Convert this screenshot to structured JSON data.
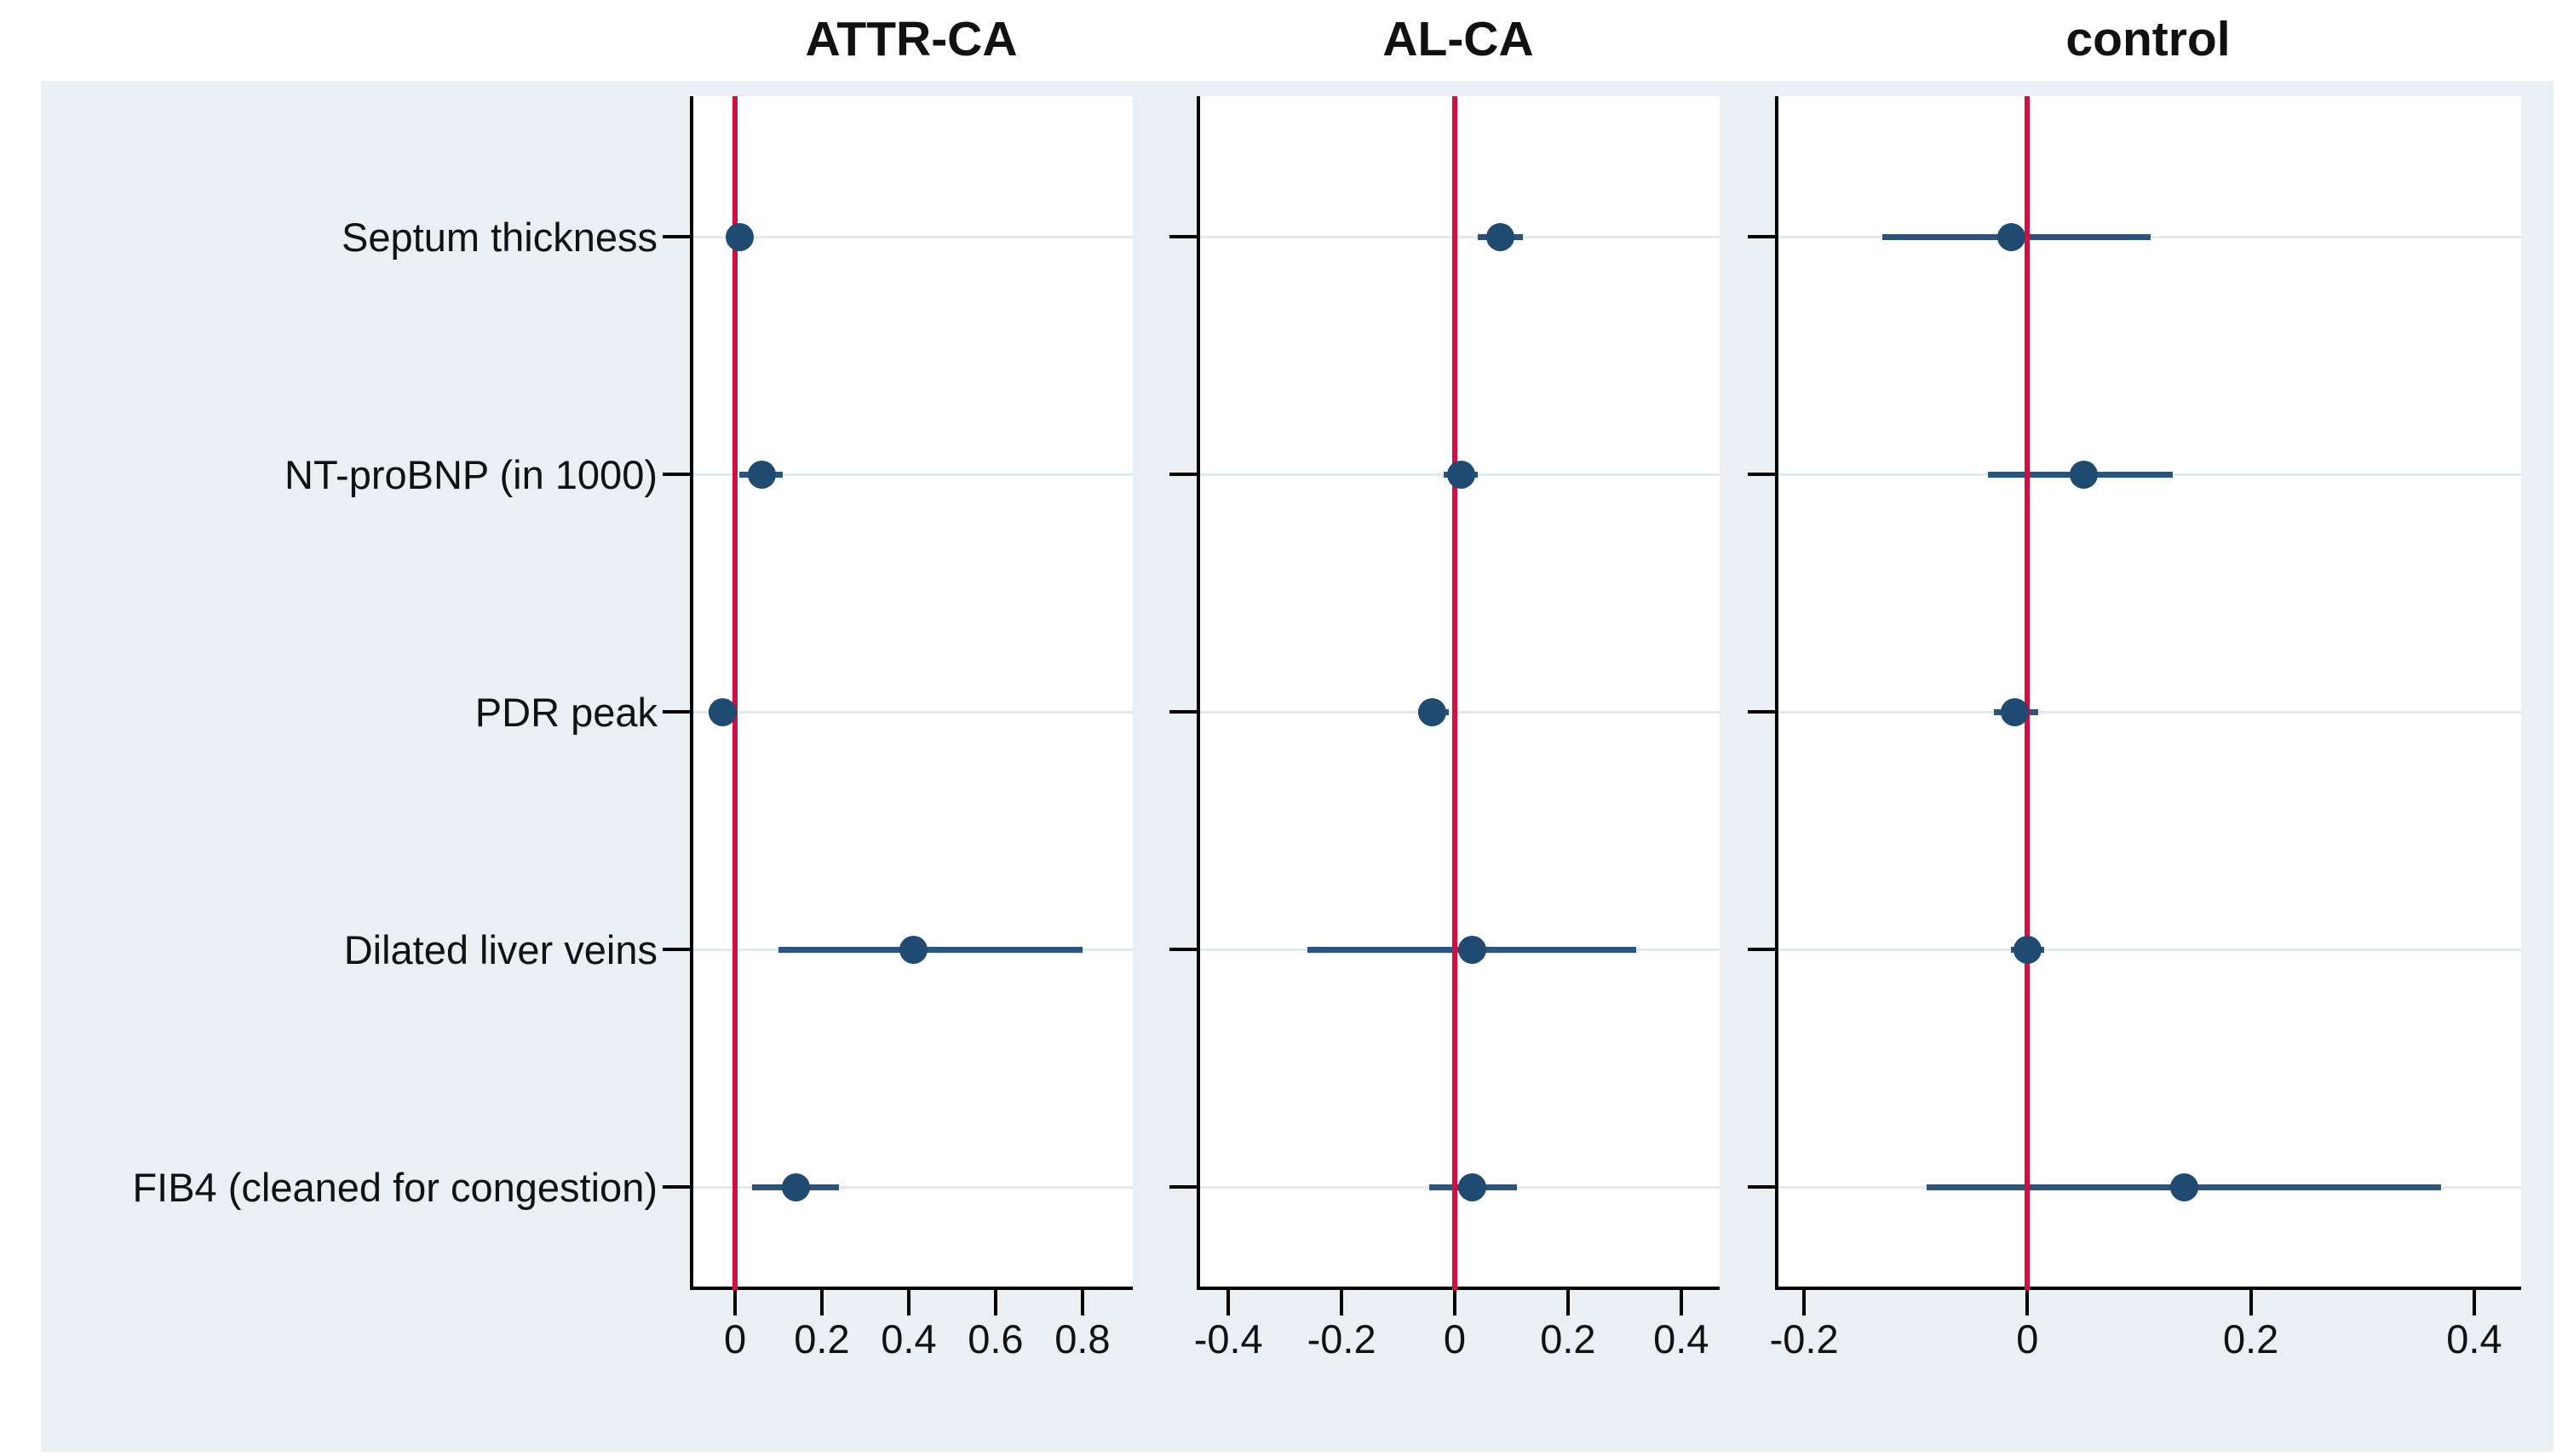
{
  "figure": {
    "background_color": "#e9eff2",
    "panel_color": "#ffffff",
    "zero_line_color": "#d00f42",
    "marker_color": "#1f4a72",
    "ci_color": "#2a5480",
    "gridline_color": "#e1ebee"
  },
  "rows": [
    "Septum thickness",
    "NT-proBNP (in 1000)",
    "PDR peak",
    "Dilated liver veins",
    "FIB4 (cleaned for congestion)"
  ],
  "chart_data": {
    "type": "scatter",
    "subtype": "forest-plot-three-panel",
    "row_labels": [
      "Septum thickness",
      "NT-proBNP (in 1000)",
      "PDR peak",
      "Dilated liver veins",
      "FIB4 (cleaned for congestion)"
    ],
    "zero_reference_line": 0,
    "grid": "horizontal-per-row",
    "legend": "none",
    "panels": [
      {
        "title": "ATTR-CA",
        "xlim": [
          -0.104,
          0.916
        ],
        "ticks": [
          {
            "v": 0,
            "label": "0"
          },
          {
            "v": 0.2,
            "label": "0.2"
          },
          {
            "v": 0.4,
            "label": "0.4"
          },
          {
            "v": 0.6,
            "label": "0.6"
          },
          {
            "v": 0.8,
            "label": "0.8"
          }
        ],
        "estimates": [
          {
            "row": "Septum thickness",
            "est": 0.01,
            "lo": -0.02,
            "hi": 0.04
          },
          {
            "row": "NT-proBNP (in 1000)",
            "est": 0.06,
            "lo": 0.01,
            "hi": 0.11
          },
          {
            "row": "PDR peak",
            "est": -0.03,
            "lo": -0.06,
            "hi": -0.005
          },
          {
            "row": "Dilated liver veins",
            "est": 0.41,
            "lo": 0.1,
            "hi": 0.8
          },
          {
            "row": "FIB4 (cleaned for congestion)",
            "est": 0.14,
            "lo": 0.04,
            "hi": 0.24
          }
        ]
      },
      {
        "title": "AL-CA",
        "xlim": [
          -0.456,
          0.468
        ],
        "ticks": [
          {
            "v": -0.4,
            "label": "-0.4"
          },
          {
            "v": -0.2,
            "label": "-0.2"
          },
          {
            "v": 0,
            "label": "0"
          },
          {
            "v": 0.2,
            "label": "0.2"
          },
          {
            "v": 0.4,
            "label": "0.4"
          }
        ],
        "estimates": [
          {
            "row": "Septum thickness",
            "est": 0.08,
            "lo": 0.04,
            "hi": 0.12
          },
          {
            "row": "NT-proBNP (in 1000)",
            "est": 0.01,
            "lo": -0.02,
            "hi": 0.04
          },
          {
            "row": "PDR peak",
            "est": -0.04,
            "lo": -0.065,
            "hi": -0.01
          },
          {
            "row": "Dilated liver veins",
            "est": 0.03,
            "lo": -0.26,
            "hi": 0.32
          },
          {
            "row": "FIB4 (cleaned for congestion)",
            "est": 0.03,
            "lo": -0.045,
            "hi": 0.11
          }
        ]
      },
      {
        "title": "control",
        "xlim": [
          -0.226,
          0.442
        ],
        "ticks": [
          {
            "v": -0.2,
            "label": "-0.2"
          },
          {
            "v": 0,
            "label": "0"
          },
          {
            "v": 0.2,
            "label": "0.2"
          },
          {
            "v": 0.4,
            "label": "0.4"
          }
        ],
        "estimates": [
          {
            "row": "Septum thickness",
            "est": -0.015,
            "lo": -0.13,
            "hi": 0.11
          },
          {
            "row": "NT-proBNP (in 1000)",
            "est": 0.05,
            "lo": -0.035,
            "hi": 0.13
          },
          {
            "row": "PDR peak",
            "est": -0.012,
            "lo": -0.03,
            "hi": 0.01
          },
          {
            "row": "Dilated liver veins",
            "est": 0.0,
            "lo": -0.015,
            "hi": 0.015
          },
          {
            "row": "FIB4 (cleaned for congestion)",
            "est": 0.14,
            "lo": -0.09,
            "hi": 0.37
          }
        ]
      }
    ]
  }
}
